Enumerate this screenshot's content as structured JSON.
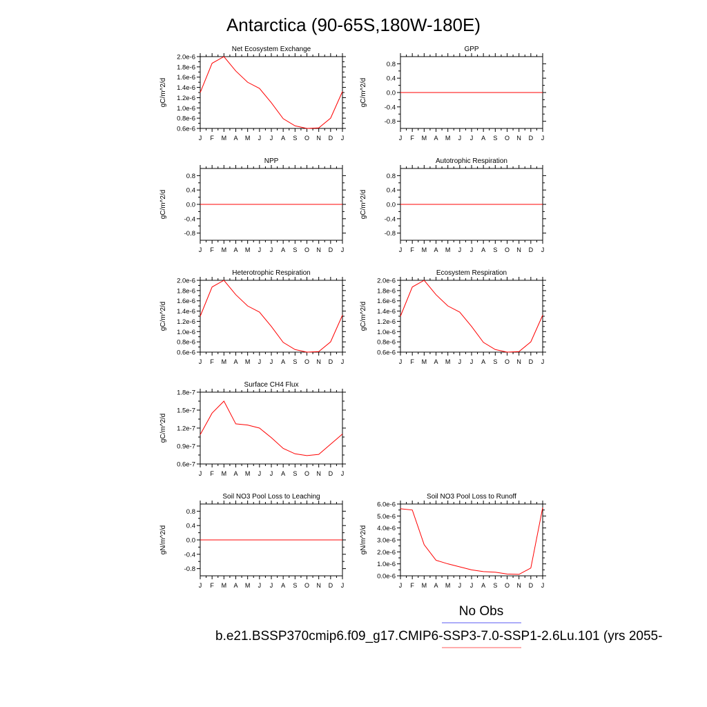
{
  "figure": {
    "title": "Antarctica (90-65S,180W-180E)",
    "legend": {
      "obs_label": "No Obs",
      "obs_color": "#7b7bf5",
      "model_label": "b.e21.BSSP370cmip6.f09_g17.CMIP6-SSP3-7.0-SSP1-2.6Lu.101 (yrs 2055-",
      "model_color": "#ff7b7b"
    }
  },
  "chart_data": [
    {
      "type": "line",
      "title": "Net Ecosystem Exchange",
      "ylabel": "gC/m^2/d",
      "x": [
        "J",
        "F",
        "M",
        "A",
        "M",
        "J",
        "J",
        "A",
        "S",
        "O",
        "N",
        "D",
        "J"
      ],
      "ylim": [
        6e-07,
        2e-06
      ],
      "yticks": [
        6e-07,
        8e-07,
        1e-06,
        1.2e-06,
        1.4e-06,
        1.6e-06,
        1.8e-06,
        2e-06
      ],
      "ytick_labels": [
        "0.6e-6",
        "0.8e-6",
        "1.0e-6",
        "1.2e-6",
        "1.4e-6",
        "1.6e-6",
        "1.8e-6",
        "2.0e-6"
      ],
      "series": [
        {
          "color": "#ff0000",
          "values": [
            1.3e-06,
            1.87e-06,
            2e-06,
            1.72e-06,
            1.5e-06,
            1.38e-06,
            1.1e-06,
            7.9e-07,
            6.5e-07,
            6e-07,
            6.1e-07,
            8e-07,
            1.32e-06
          ]
        }
      ]
    },
    {
      "type": "line",
      "title": "GPP",
      "ylabel": "gC/m^2/d",
      "x": [
        "J",
        "F",
        "M",
        "A",
        "M",
        "J",
        "J",
        "A",
        "S",
        "O",
        "N",
        "D",
        "J"
      ],
      "ylim": [
        -1.0,
        1.0
      ],
      "yticks": [
        -0.8,
        -0.4,
        0.0,
        0.4,
        0.8
      ],
      "ytick_labels": [
        "-0.8",
        "-0.4",
        "0.0",
        "0.4",
        "0.8"
      ],
      "series": [
        {
          "color": "#ff0000",
          "values": [
            0,
            0,
            0,
            0,
            0,
            0,
            0,
            0,
            0,
            0,
            0,
            0,
            0
          ]
        }
      ]
    },
    {
      "type": "line",
      "title": "NPP",
      "ylabel": "gC/m^2/d",
      "x": [
        "J",
        "F",
        "M",
        "A",
        "M",
        "J",
        "J",
        "A",
        "S",
        "O",
        "N",
        "D",
        "J"
      ],
      "ylim": [
        -1.0,
        1.0
      ],
      "yticks": [
        -0.8,
        -0.4,
        0.0,
        0.4,
        0.8
      ],
      "ytick_labels": [
        "-0.8",
        "-0.4",
        "0.0",
        "0.4",
        "0.8"
      ],
      "series": [
        {
          "color": "#ff0000",
          "values": [
            0,
            0,
            0,
            0,
            0,
            0,
            0,
            0,
            0,
            0,
            0,
            0,
            0
          ]
        }
      ]
    },
    {
      "type": "line",
      "title": "Autotrophic Respiration",
      "ylabel": "gC/m^2/d",
      "x": [
        "J",
        "F",
        "M",
        "A",
        "M",
        "J",
        "J",
        "A",
        "S",
        "O",
        "N",
        "D",
        "J"
      ],
      "ylim": [
        -1.0,
        1.0
      ],
      "yticks": [
        -0.8,
        -0.4,
        0.0,
        0.4,
        0.8
      ],
      "ytick_labels": [
        "-0.8",
        "-0.4",
        "0.0",
        "0.4",
        "0.8"
      ],
      "series": [
        {
          "color": "#ff0000",
          "values": [
            0,
            0,
            0,
            0,
            0,
            0,
            0,
            0,
            0,
            0,
            0,
            0,
            0
          ]
        }
      ]
    },
    {
      "type": "line",
      "title": "Heterotrophic Respiration",
      "ylabel": "gC/m^2/d",
      "x": [
        "J",
        "F",
        "M",
        "A",
        "M",
        "J",
        "J",
        "A",
        "S",
        "O",
        "N",
        "D",
        "J"
      ],
      "ylim": [
        6e-07,
        2e-06
      ],
      "yticks": [
        6e-07,
        8e-07,
        1e-06,
        1.2e-06,
        1.4e-06,
        1.6e-06,
        1.8e-06,
        2e-06
      ],
      "ytick_labels": [
        "0.6e-6",
        "0.8e-6",
        "1.0e-6",
        "1.2e-6",
        "1.4e-6",
        "1.6e-6",
        "1.8e-6",
        "2.0e-6"
      ],
      "series": [
        {
          "color": "#ff0000",
          "values": [
            1.3e-06,
            1.87e-06,
            2e-06,
            1.72e-06,
            1.5e-06,
            1.38e-06,
            1.1e-06,
            7.9e-07,
            6.5e-07,
            6e-07,
            6.1e-07,
            8e-07,
            1.32e-06
          ]
        }
      ]
    },
    {
      "type": "line",
      "title": "Ecosystem Respiration",
      "ylabel": "gC/m^2/d",
      "x": [
        "J",
        "F",
        "M",
        "A",
        "M",
        "J",
        "J",
        "A",
        "S",
        "O",
        "N",
        "D",
        "J"
      ],
      "ylim": [
        6e-07,
        2e-06
      ],
      "yticks": [
        6e-07,
        8e-07,
        1e-06,
        1.2e-06,
        1.4e-06,
        1.6e-06,
        1.8e-06,
        2e-06
      ],
      "ytick_labels": [
        "0.6e-6",
        "0.8e-6",
        "1.0e-6",
        "1.2e-6",
        "1.4e-6",
        "1.6e-6",
        "1.8e-6",
        "2.0e-6"
      ],
      "series": [
        {
          "color": "#ff0000",
          "values": [
            1.3e-06,
            1.87e-06,
            2e-06,
            1.72e-06,
            1.5e-06,
            1.38e-06,
            1.1e-06,
            7.9e-07,
            6.5e-07,
            6e-07,
            6.1e-07,
            8e-07,
            1.32e-06
          ]
        }
      ]
    },
    {
      "type": "line",
      "title": "Surface CH4 Flux",
      "ylabel": "gC/m^2/d",
      "x": [
        "J",
        "F",
        "M",
        "A",
        "M",
        "J",
        "J",
        "A",
        "S",
        "O",
        "N",
        "D",
        "J"
      ],
      "ylim": [
        6e-08,
        1.8e-07
      ],
      "yticks": [
        6e-08,
        9e-08,
        1.2e-07,
        1.5e-07,
        1.8e-07
      ],
      "ytick_labels": [
        "0.6e-7",
        "0.9e-7",
        "1.2e-7",
        "1.5e-7",
        "1.8e-7"
      ],
      "series": [
        {
          "color": "#ff0000",
          "values": [
            1.09e-07,
            1.45e-07,
            1.65e-07,
            1.27e-07,
            1.25e-07,
            1.2e-07,
            1.04e-07,
            8.6e-08,
            7.7e-08,
            7.4e-08,
            7.6e-08,
            9.3e-08,
            1.1e-07
          ]
        }
      ]
    },
    {
      "type": "line",
      "title": "Soil NO3 Pool Loss to Leaching",
      "ylabel": "gN/m^2/d",
      "x": [
        "J",
        "F",
        "M",
        "A",
        "M",
        "J",
        "J",
        "A",
        "S",
        "O",
        "N",
        "D",
        "J"
      ],
      "ylim": [
        -1.0,
        1.0
      ],
      "yticks": [
        -0.8,
        -0.4,
        0.0,
        0.4,
        0.8
      ],
      "ytick_labels": [
        "-0.8",
        "-0.4",
        "0.0",
        "0.4",
        "0.8"
      ],
      "series": [
        {
          "color": "#ff0000",
          "values": [
            0,
            0,
            0,
            0,
            0,
            0,
            0,
            0,
            0,
            0,
            0,
            0,
            0
          ]
        }
      ]
    },
    {
      "type": "line",
      "title": "Soil NO3 Pool Loss to Runoff",
      "ylabel": "gN/m^2/d",
      "x": [
        "J",
        "F",
        "M",
        "A",
        "M",
        "J",
        "J",
        "A",
        "S",
        "O",
        "N",
        "D",
        "J"
      ],
      "ylim": [
        0.0,
        6e-06
      ],
      "yticks": [
        0.0,
        1e-06,
        2e-06,
        3e-06,
        4e-06,
        5e-06,
        6e-06
      ],
      "ytick_labels": [
        "0.0e-6",
        "1.0e-6",
        "2.0e-6",
        "3.0e-6",
        "4.0e-6",
        "5.0e-6",
        "6.0e-6"
      ],
      "series": [
        {
          "color": "#ff0000",
          "values": [
            5.6e-06,
            5.5e-06,
            2.6e-06,
            1.3e-06,
            1e-06,
            7.5e-07,
            5e-07,
            3.5e-07,
            3e-07,
            1.5e-07,
            1.2e-07,
            6.5e-07,
            5.7e-06
          ]
        }
      ]
    }
  ]
}
